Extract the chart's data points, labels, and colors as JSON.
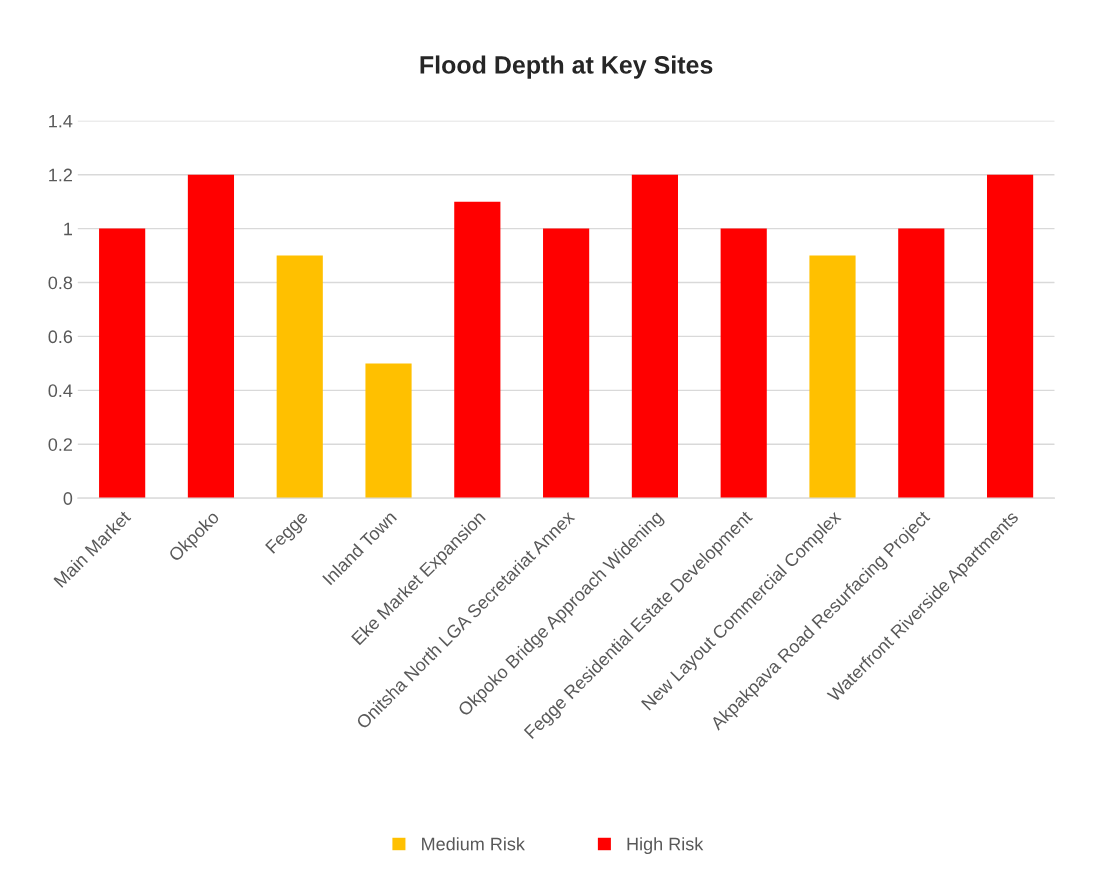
{
  "chart_data": {
    "type": "bar",
    "title": "Flood Depth at Key Sites",
    "categories": [
      "Main Market",
      "Okpoko",
      "Fegge",
      "Inland Town",
      "Eke Market Expansion",
      "Onitsha North LGA Secretariat Annex",
      "Okpoko Bridge Approach Widening",
      "Fegge Residential Estate Development",
      "New Layout Commercial Complex",
      "Akpakpava Road Resurfacing Project",
      "Waterfront Riverside Apartments"
    ],
    "series": [
      {
        "name": "Medium Risk",
        "color": "#ffc000",
        "values": [
          null,
          null,
          0.9,
          0.5,
          null,
          null,
          null,
          null,
          0.9,
          null,
          null
        ]
      },
      {
        "name": "High Risk",
        "color": "#ff0000",
        "values": [
          1.0,
          1.2,
          null,
          null,
          1.1,
          1.0,
          1.2,
          1.0,
          null,
          1.0,
          1.2
        ]
      }
    ],
    "stacked": true,
    "ylim": [
      0,
      1.4
    ],
    "yticks": [
      0,
      0.2,
      0.4,
      0.6,
      0.8,
      1,
      1.2,
      1.4
    ],
    "grid": "y",
    "legend": "bottom"
  }
}
